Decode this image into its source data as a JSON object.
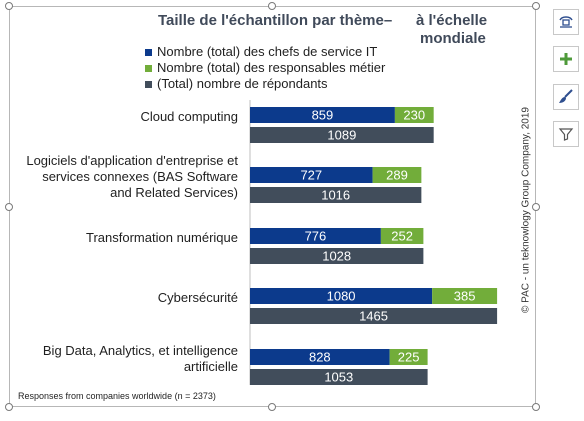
{
  "chart_data": {
    "type": "bar",
    "title_line1": "Taille de l'échantillon par thème–",
    "title_line2": "à l'échelle",
    "title_line3": "mondiale",
    "categories": [
      [
        "Cloud computing"
      ],
      [
        "Logiciels d'application d'entreprise et",
        "services connexes (BAS Software",
        "and Related Services)"
      ],
      [
        "Transformation numérique"
      ],
      [
        "Cybersécurité"
      ],
      [
        "Big Data, Analytics, et intelligence",
        "artificielle"
      ]
    ],
    "series": [
      {
        "name": "Nombre (total) des chefs de service IT",
        "color": "#0c3a8c",
        "values": [
          859,
          727,
          776,
          1080,
          828
        ]
      },
      {
        "name": "Nombre (total) des responsables métier",
        "color": "#72ad3a",
        "values": [
          230,
          289,
          252,
          385,
          225
        ]
      },
      {
        "name": "(Total) nombre de répondants",
        "color": "#414d5b",
        "values": [
          1089,
          1016,
          1028,
          1465,
          1053
        ]
      }
    ],
    "stacked_series": [
      0,
      1
    ],
    "total_series": 2,
    "xlim": [
      0,
      1500
    ],
    "legend_position": "top",
    "footnote": "Responses from companies worldwide (n = 2373)",
    "copyright": "© PAC - un teknowlogy Group Company, 2019"
  },
  "toolbar": {
    "icons": [
      "layout-options-icon",
      "chart-elements-plus-icon",
      "chart-styles-brush-icon",
      "chart-filters-funnel-icon"
    ]
  }
}
